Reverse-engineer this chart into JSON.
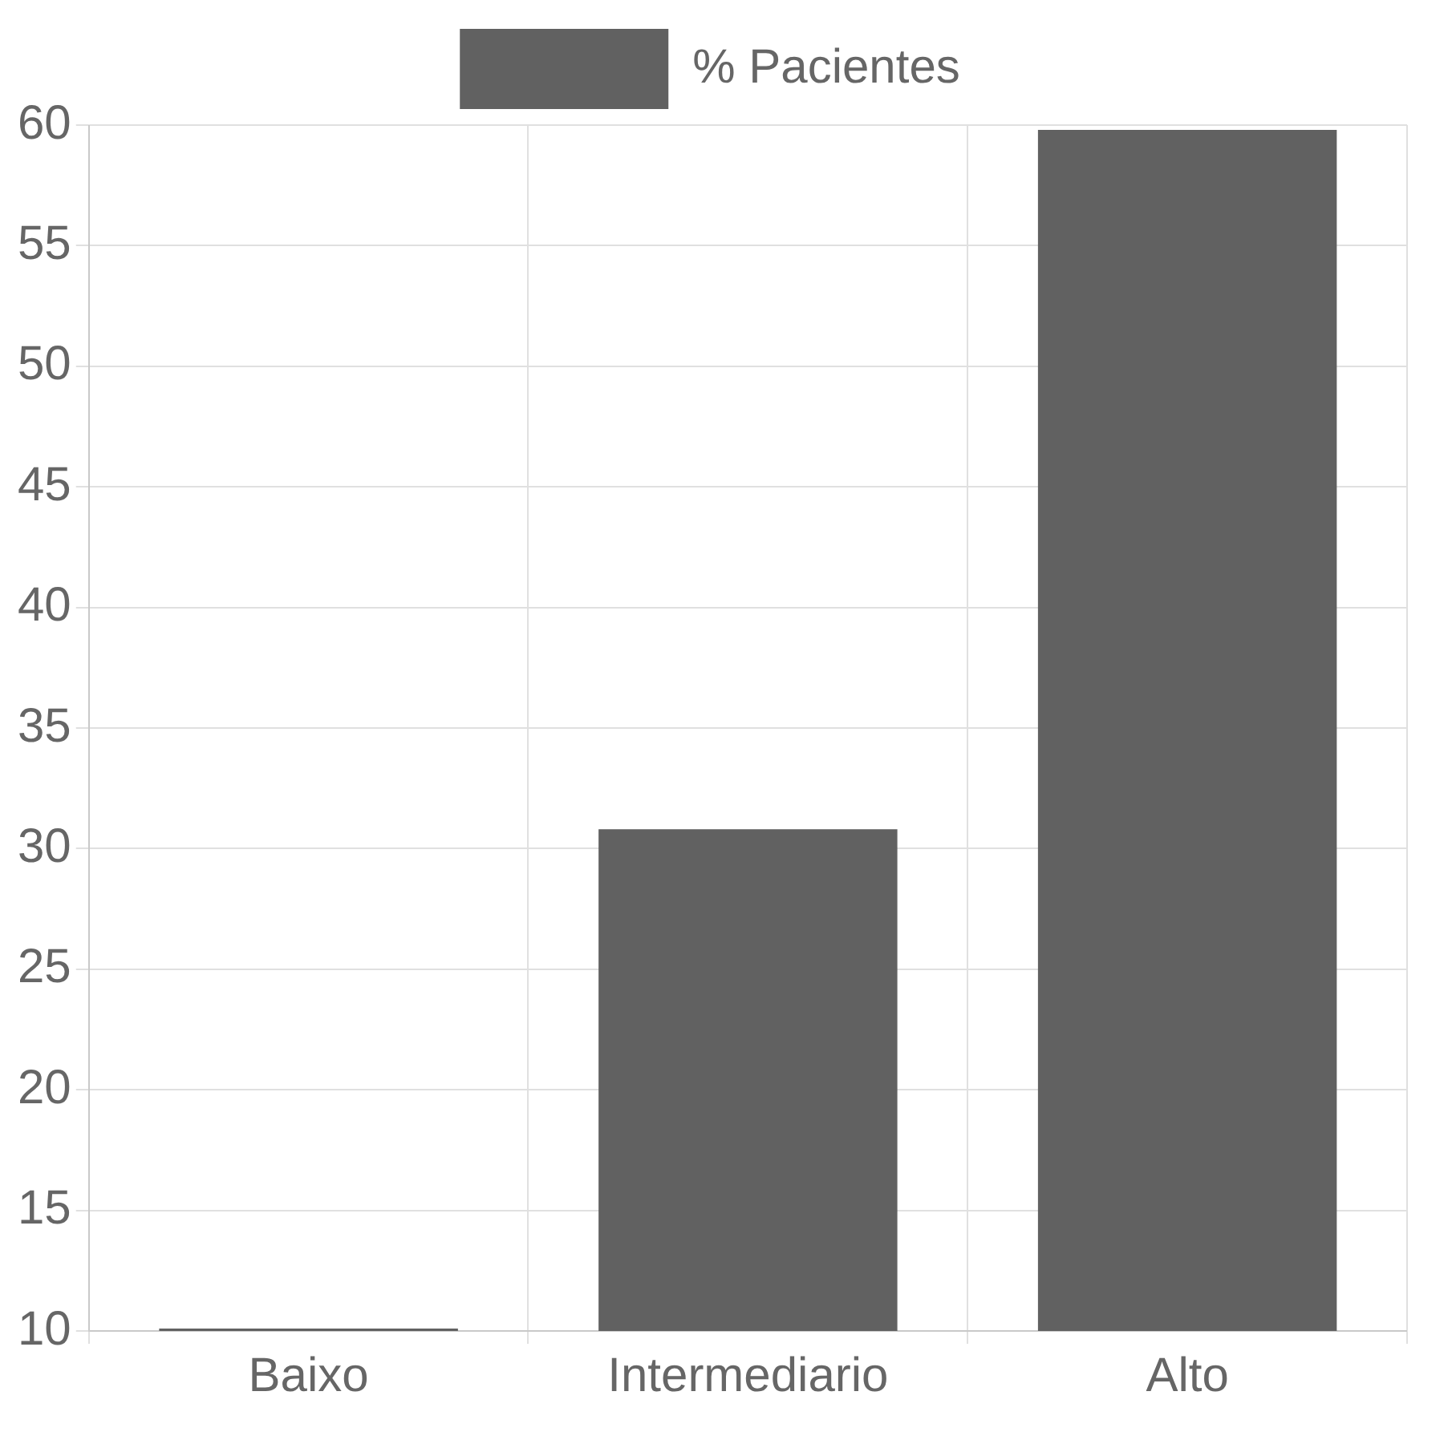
{
  "chart_data": {
    "type": "bar",
    "categories": [
      "Baixo",
      "Intermediario",
      "Alto"
    ],
    "series": [
      {
        "name": "% Pacientes",
        "color": "#616161",
        "values": [
          10.1,
          30.8,
          59.8
        ]
      }
    ],
    "ylim": [
      10,
      60
    ],
    "yticks": [
      10,
      15,
      20,
      25,
      30,
      35,
      40,
      45,
      50,
      55,
      60
    ],
    "grid": true,
    "legend": "top"
  }
}
